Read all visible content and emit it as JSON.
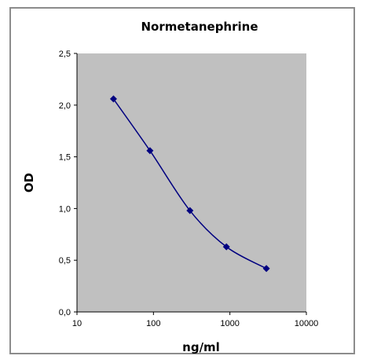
{
  "chart_data": {
    "type": "line",
    "title": "Normetanephrine",
    "xlabel": "ng/ml",
    "ylabel": "OD",
    "x_scale": "log",
    "xlim": [
      10,
      10000
    ],
    "ylim": [
      0,
      2.5
    ],
    "x_ticks": [
      10,
      100,
      1000,
      10000
    ],
    "x_tick_labels": [
      "10",
      "100",
      "1000",
      "10000"
    ],
    "y_ticks": [
      0,
      0.5,
      1.0,
      1.5,
      2.0,
      2.5
    ],
    "y_tick_labels": [
      "0,0",
      "0,5",
      "1,0",
      "1,5",
      "2,0",
      "2,5"
    ],
    "grid": false,
    "legend": "none",
    "series": [
      {
        "x": [
          30,
          90,
          300,
          900,
          3000
        ],
        "y": [
          2.06,
          1.56,
          0.98,
          0.63,
          0.42
        ],
        "color": "#000080",
        "marker": "diamond",
        "smooth": true
      }
    ],
    "plot_background": "#c0c0c0"
  }
}
